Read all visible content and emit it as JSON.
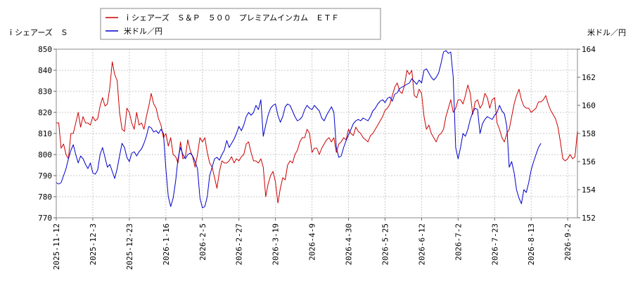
{
  "chart_data": {
    "type": "line",
    "title": "",
    "legend": {
      "placement": "top-center",
      "entries": [
        {
          "label": "ｉシェアーズ　Ｓ＆Ｐ　５００　プレミアムインカム　ＥＴＦ",
          "color": "#cc0000"
        },
        {
          "label": "米ドル／円",
          "color": "#0000cc"
        }
      ]
    },
    "left_axis": {
      "label": "ｉシェアーズ　Ｓ",
      "ticks": [
        770,
        780,
        790,
        800,
        810,
        820,
        830,
        840,
        850
      ],
      "range": [
        770,
        850
      ]
    },
    "right_axis": {
      "label": "米ドル／円",
      "ticks": [
        152,
        154,
        156,
        158,
        160,
        162,
        164
      ],
      "range": [
        152,
        164
      ]
    },
    "x_axis": {
      "ticks": [
        "2025-11-12",
        "2025-12-3",
        "2025-12-23",
        "2026-1-16",
        "2026-2-5",
        "2026-2-27",
        "2026-3-19",
        "2026-4-9",
        "2026-4-30",
        "2026-5-25",
        "2026-6-12",
        "2026-7-2",
        "2026-7-23",
        "2026-8-13",
        "2026-9-2"
      ],
      "tick_index": [
        0,
        15,
        30,
        45,
        60,
        75,
        90,
        105,
        120,
        135,
        150,
        165,
        180,
        195,
        210
      ]
    },
    "grid": true,
    "series": [
      {
        "name": "ｉシェアーズ　Ｓ＆Ｐ　５００　プレミアムインカム　ＥＴＦ",
        "axis": "left",
        "color": "#cc0000",
        "values": [
          815,
          815,
          803,
          805,
          800,
          798,
          810,
          810,
          815,
          820,
          813,
          818,
          815,
          815,
          814,
          818,
          816,
          817,
          823,
          827,
          823,
          824,
          832,
          844,
          838,
          835,
          820,
          812,
          811,
          822,
          820,
          815,
          812,
          820,
          814,
          815,
          812,
          818,
          823,
          829,
          824,
          822,
          817,
          814,
          808,
          810,
          804,
          808,
          800,
          799,
          796,
          806,
          798,
          799,
          807,
          802,
          799,
          794,
          800,
          808,
          806,
          808,
          801,
          796,
          794,
          789,
          784,
          792,
          797,
          796,
          796,
          797,
          799,
          796,
          798,
          797,
          799,
          800,
          805,
          806,
          801,
          797,
          797,
          796,
          798,
          794,
          780,
          786,
          790,
          792,
          787,
          777,
          784,
          789,
          788,
          795,
          797,
          796,
          800,
          802,
          806,
          808,
          808,
          812,
          810,
          801,
          803,
          803,
          800,
          803,
          805,
          807,
          808,
          806,
          808,
          801,
          805,
          806,
          808,
          807,
          812,
          810,
          809,
          813,
          811,
          810,
          808,
          807,
          806,
          809,
          810,
          812,
          814,
          816,
          818,
          821,
          822,
          824,
          828,
          832,
          834,
          830,
          829,
          833,
          840,
          838,
          840,
          828,
          827,
          831,
          829,
          818,
          812,
          814,
          810,
          808,
          806,
          809,
          810,
          812,
          818,
          822,
          826,
          820,
          822,
          826,
          826,
          824,
          828,
          833,
          829,
          819,
          825,
          826,
          822,
          824,
          829,
          827,
          822,
          826,
          827,
          815,
          812,
          808,
          806,
          810,
          812,
          818,
          824,
          828,
          831,
          826,
          823,
          822,
          822,
          820,
          821,
          822,
          825,
          825,
          826,
          828,
          824,
          821,
          819,
          817,
          813,
          806,
          798,
          797,
          798,
          800,
          798,
          799,
          811
        ]
      },
      {
        "name": "米ドル／円",
        "axis": "right",
        "color": "#0000cc",
        "values": [
          154.5,
          154.4,
          154.5,
          155.0,
          155.5,
          156.2,
          156.8,
          157.2,
          156.5,
          155.9,
          156.4,
          156.2,
          155.8,
          155.5,
          155.9,
          155.2,
          155.1,
          155.4,
          156.5,
          157.0,
          156.3,
          155.6,
          155.8,
          155.3,
          154.8,
          155.5,
          156.4,
          157.3,
          157.0,
          156.3,
          156.0,
          156.6,
          156.7,
          156.4,
          156.7,
          156.9,
          157.3,
          157.8,
          158.5,
          158.4,
          158.1,
          158.2,
          158.0,
          158.3,
          158.0,
          155.5,
          153.5,
          152.8,
          153.4,
          154.6,
          156.2,
          157.0,
          156.5,
          156.2,
          156.5,
          156.6,
          156.4,
          156.0,
          155.5,
          153.4,
          152.7,
          152.8,
          153.5,
          155.0,
          155.6,
          156.2,
          156.3,
          156.1,
          156.5,
          156.8,
          157.5,
          157.0,
          157.3,
          157.6,
          158.0,
          158.5,
          158.2,
          158.6,
          159.2,
          159.5,
          159.3,
          159.5,
          160.0,
          159.7,
          160.4,
          157.8,
          158.6,
          159.3,
          159.8,
          160.0,
          160.1,
          159.3,
          158.8,
          159.2,
          159.9,
          160.1,
          160.0,
          159.6,
          159.2,
          158.9,
          159.0,
          159.2,
          159.7,
          160.0,
          159.8,
          159.7,
          160.0,
          159.8,
          159.6,
          159.1,
          158.9,
          159.3,
          159.6,
          159.9,
          159.5,
          157.0,
          156.3,
          156.4,
          157.0,
          157.5,
          157.9,
          158.3,
          158.7,
          158.9,
          159.0,
          158.9,
          159.1,
          159.0,
          158.9,
          159.2,
          159.6,
          159.8,
          160.1,
          160.3,
          160.4,
          160.2,
          160.5,
          160.6,
          160.3,
          160.8,
          160.9,
          161.2,
          161.3,
          161.4,
          161.5,
          161.6,
          161.9,
          161.7,
          161.5,
          161.8,
          161.6,
          162.5,
          162.6,
          162.3,
          162.0,
          161.8,
          162.0,
          162.3,
          163.0,
          163.8,
          163.9,
          163.7,
          163.8,
          162.0,
          157.0,
          156.2,
          157.0,
          158.0,
          157.8,
          158.3,
          159.0,
          159.5,
          159.8,
          159.7,
          158.0,
          158.7,
          159.0,
          159.2,
          159.1,
          159.0,
          159.3,
          159.5,
          160.0,
          159.6,
          159.4,
          158.5,
          155.6,
          156.0,
          155.2,
          154.0,
          153.4,
          153.0,
          154.0,
          153.8,
          154.5,
          155.4,
          156.0,
          156.5,
          157.0,
          157.3
        ]
      }
    ]
  }
}
